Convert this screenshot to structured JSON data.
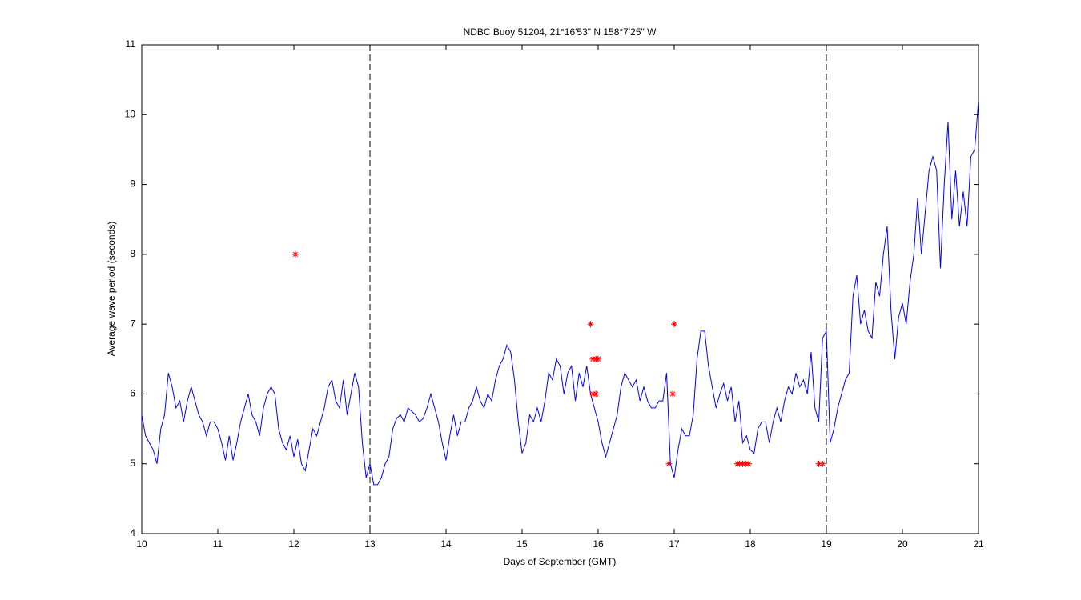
{
  "chart_data": {
    "type": "line",
    "title": "NDBC Buoy 51204, 21°16'53\" N 158°7'25\" W",
    "xlabel": "Days of September (GMT)",
    "ylabel": "Average wave period (seconds)",
    "xlim": [
      10,
      21
    ],
    "ylim": [
      4,
      11
    ],
    "xticks": [
      10,
      11,
      12,
      13,
      14,
      15,
      16,
      17,
      18,
      19,
      20,
      21
    ],
    "yticks": [
      4,
      5,
      6,
      7,
      8,
      9,
      10,
      11
    ],
    "vlines": [
      13,
      19
    ],
    "vline_color": "#000000",
    "x": [
      10.0,
      10.05,
      10.1,
      10.15,
      10.2,
      10.25,
      10.3,
      10.35,
      10.4,
      10.45,
      10.5,
      10.55,
      10.6,
      10.65,
      10.7,
      10.75,
      10.8,
      10.85,
      10.9,
      10.95,
      11.0,
      11.05,
      11.1,
      11.15,
      11.2,
      11.25,
      11.3,
      11.35,
      11.4,
      11.45,
      11.5,
      11.55,
      11.6,
      11.65,
      11.7,
      11.75,
      11.8,
      11.85,
      11.9,
      11.95,
      12.0,
      12.05,
      12.1,
      12.15,
      12.2,
      12.25,
      12.3,
      12.35,
      12.4,
      12.45,
      12.5,
      12.55,
      12.6,
      12.65,
      12.7,
      12.75,
      12.8,
      12.85,
      12.9,
      12.95,
      13.0,
      13.05,
      13.1,
      13.15,
      13.2,
      13.25,
      13.3,
      13.35,
      13.4,
      13.45,
      13.5,
      13.55,
      13.6,
      13.65,
      13.7,
      13.75,
      13.8,
      13.85,
      13.9,
      13.95,
      14.0,
      14.05,
      14.1,
      14.15,
      14.2,
      14.25,
      14.3,
      14.35,
      14.4,
      14.45,
      14.5,
      14.55,
      14.6,
      14.65,
      14.7,
      14.75,
      14.8,
      14.85,
      14.9,
      14.95,
      15.0,
      15.05,
      15.1,
      15.15,
      15.2,
      15.25,
      15.3,
      15.35,
      15.4,
      15.45,
      15.5,
      15.55,
      15.6,
      15.65,
      15.7,
      15.75,
      15.8,
      15.85,
      15.9,
      15.95,
      16.0,
      16.05,
      16.1,
      16.15,
      16.2,
      16.25,
      16.3,
      16.35,
      16.4,
      16.45,
      16.5,
      16.55,
      16.6,
      16.65,
      16.7,
      16.75,
      16.8,
      16.85,
      16.9,
      16.95,
      17.0,
      17.05,
      17.1,
      17.15,
      17.2,
      17.25,
      17.3,
      17.35,
      17.4,
      17.45,
      17.5,
      17.55,
      17.6,
      17.65,
      17.7,
      17.75,
      17.8,
      17.85,
      17.9,
      17.95,
      18.0,
      18.05,
      18.1,
      18.15,
      18.2,
      18.25,
      18.3,
      18.35,
      18.4,
      18.45,
      18.5,
      18.55,
      18.6,
      18.65,
      18.7,
      18.75,
      18.8,
      18.85,
      18.9,
      18.95,
      19.0,
      19.05,
      19.1,
      19.15,
      19.2,
      19.25,
      19.3,
      19.35,
      19.4,
      19.45,
      19.5,
      19.55,
      19.6,
      19.65,
      19.7,
      19.75,
      19.8,
      19.85,
      19.9,
      19.95,
      20.0,
      20.05,
      20.1,
      20.15,
      20.2,
      20.25,
      20.3,
      20.35,
      20.4,
      20.45,
      20.5,
      20.55,
      20.6,
      20.65,
      20.7,
      20.75,
      20.8,
      20.85,
      20.9,
      20.95,
      21.0
    ],
    "series": [
      {
        "color": "#0000ff",
        "values": [
          5.7,
          5.4,
          5.3,
          5.2,
          5.0,
          5.5,
          5.7,
          6.3,
          6.1,
          5.8,
          5.9,
          5.6,
          5.9,
          6.1,
          5.9,
          5.7,
          5.6,
          5.4,
          5.6,
          5.6,
          5.5,
          5.3,
          5.05,
          5.4,
          5.05,
          5.3,
          5.6,
          5.8,
          6.0,
          5.7,
          5.6,
          5.4,
          5.8,
          6.0,
          6.1,
          6.0,
          5.5,
          5.3,
          5.2,
          5.4,
          5.1,
          5.35,
          5.0,
          4.9,
          5.2,
          5.5,
          5.4,
          5.6,
          5.8,
          6.1,
          6.2,
          5.9,
          5.8,
          6.2,
          5.7,
          6.0,
          6.3,
          6.1,
          5.3,
          4.8,
          5.0,
          4.7,
          4.7,
          4.8,
          5.0,
          5.1,
          5.5,
          5.65,
          5.7,
          5.6,
          5.8,
          5.75,
          5.7,
          5.6,
          5.65,
          5.8,
          6.0,
          5.8,
          5.6,
          5.3,
          5.05,
          5.4,
          5.7,
          5.4,
          5.6,
          5.6,
          5.8,
          5.9,
          6.1,
          5.9,
          5.8,
          6.0,
          5.9,
          6.2,
          6.4,
          6.5,
          6.7,
          6.6,
          6.2,
          5.6,
          5.15,
          5.3,
          5.7,
          5.6,
          5.8,
          5.6,
          5.9,
          6.3,
          6.2,
          6.5,
          6.4,
          6.0,
          6.3,
          6.4,
          5.9,
          6.3,
          6.1,
          6.4,
          6.0,
          5.8,
          5.6,
          5.3,
          5.1,
          5.3,
          5.5,
          5.7,
          6.1,
          6.3,
          6.2,
          6.1,
          6.2,
          5.9,
          6.1,
          5.9,
          5.8,
          5.8,
          5.9,
          5.9,
          6.3,
          5.0,
          4.8,
          5.2,
          5.5,
          5.4,
          5.4,
          5.7,
          6.5,
          6.9,
          6.9,
          6.4,
          6.1,
          5.8,
          6.0,
          6.15,
          5.9,
          6.1,
          5.6,
          5.9,
          5.3,
          5.4,
          5.2,
          5.15,
          5.5,
          5.6,
          5.6,
          5.3,
          5.6,
          5.8,
          5.6,
          5.9,
          6.1,
          6.0,
          6.3,
          6.1,
          6.2,
          6.0,
          6.6,
          5.8,
          5.6,
          6.8,
          6.9,
          5.3,
          5.5,
          5.8,
          6.0,
          6.2,
          6.3,
          7.4,
          7.7,
          7.0,
          7.2,
          6.9,
          6.8,
          7.6,
          7.4,
          8.0,
          8.4,
          7.2,
          6.5,
          7.1,
          7.3,
          7.0,
          7.6,
          8.0,
          8.8,
          8.0,
          8.6,
          9.2,
          9.4,
          9.2,
          7.8,
          9.0,
          9.9,
          8.5,
          9.2,
          8.4,
          8.9,
          8.4,
          9.4,
          9.5,
          10.2
        ]
      },
      {
        "type": "scatter",
        "color": "#ff0000",
        "x": [
          12.02,
          15.9,
          15.93,
          15.97,
          16.0,
          15.93,
          15.97,
          16.93,
          16.98,
          17.0,
          17.83,
          17.86,
          17.9,
          17.94,
          17.98,
          18.9,
          18.95
        ],
        "values": [
          8,
          7,
          6.5,
          6.5,
          6.5,
          6,
          6,
          5,
          6,
          7,
          5,
          5,
          5,
          5,
          5,
          5,
          5
        ]
      }
    ]
  }
}
